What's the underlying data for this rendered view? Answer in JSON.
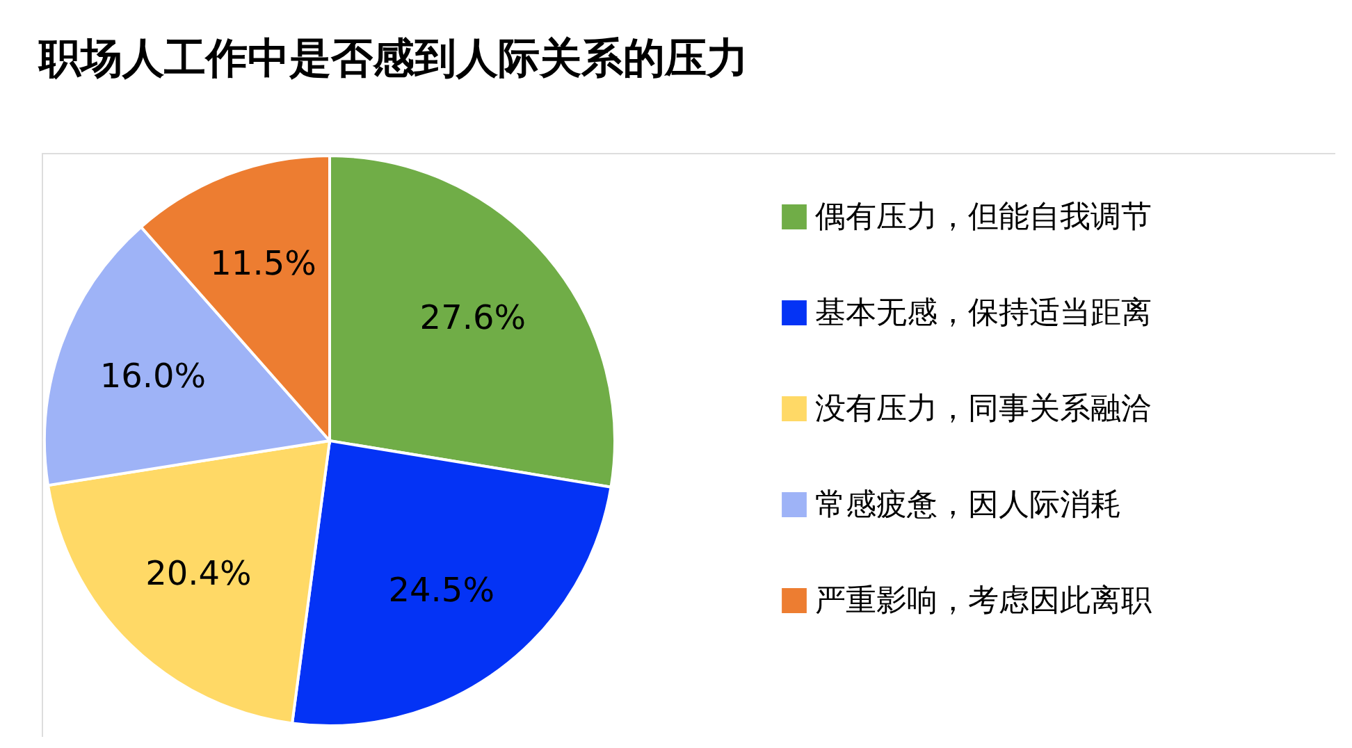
{
  "chart_data": {
    "type": "pie",
    "title": "职场人工作中是否感到人际关系的压力",
    "categories": [
      "偶有压力，但能自我调节",
      "基本无感，保持适当距离",
      "没有压力，同事关系融洽",
      "常感疲惫，因人际消耗",
      "严重影响，考虑因此离职"
    ],
    "values": [
      27.6,
      24.5,
      20.4,
      16.0,
      11.5
    ],
    "colors": [
      "#70ad47",
      "#0433f5",
      "#ffd966",
      "#9eb3f7",
      "#ed7d31"
    ],
    "value_labels": [
      "27.6%",
      "24.5%",
      "20.4%",
      "16.0%",
      "11.5%"
    ],
    "legend": "right"
  }
}
